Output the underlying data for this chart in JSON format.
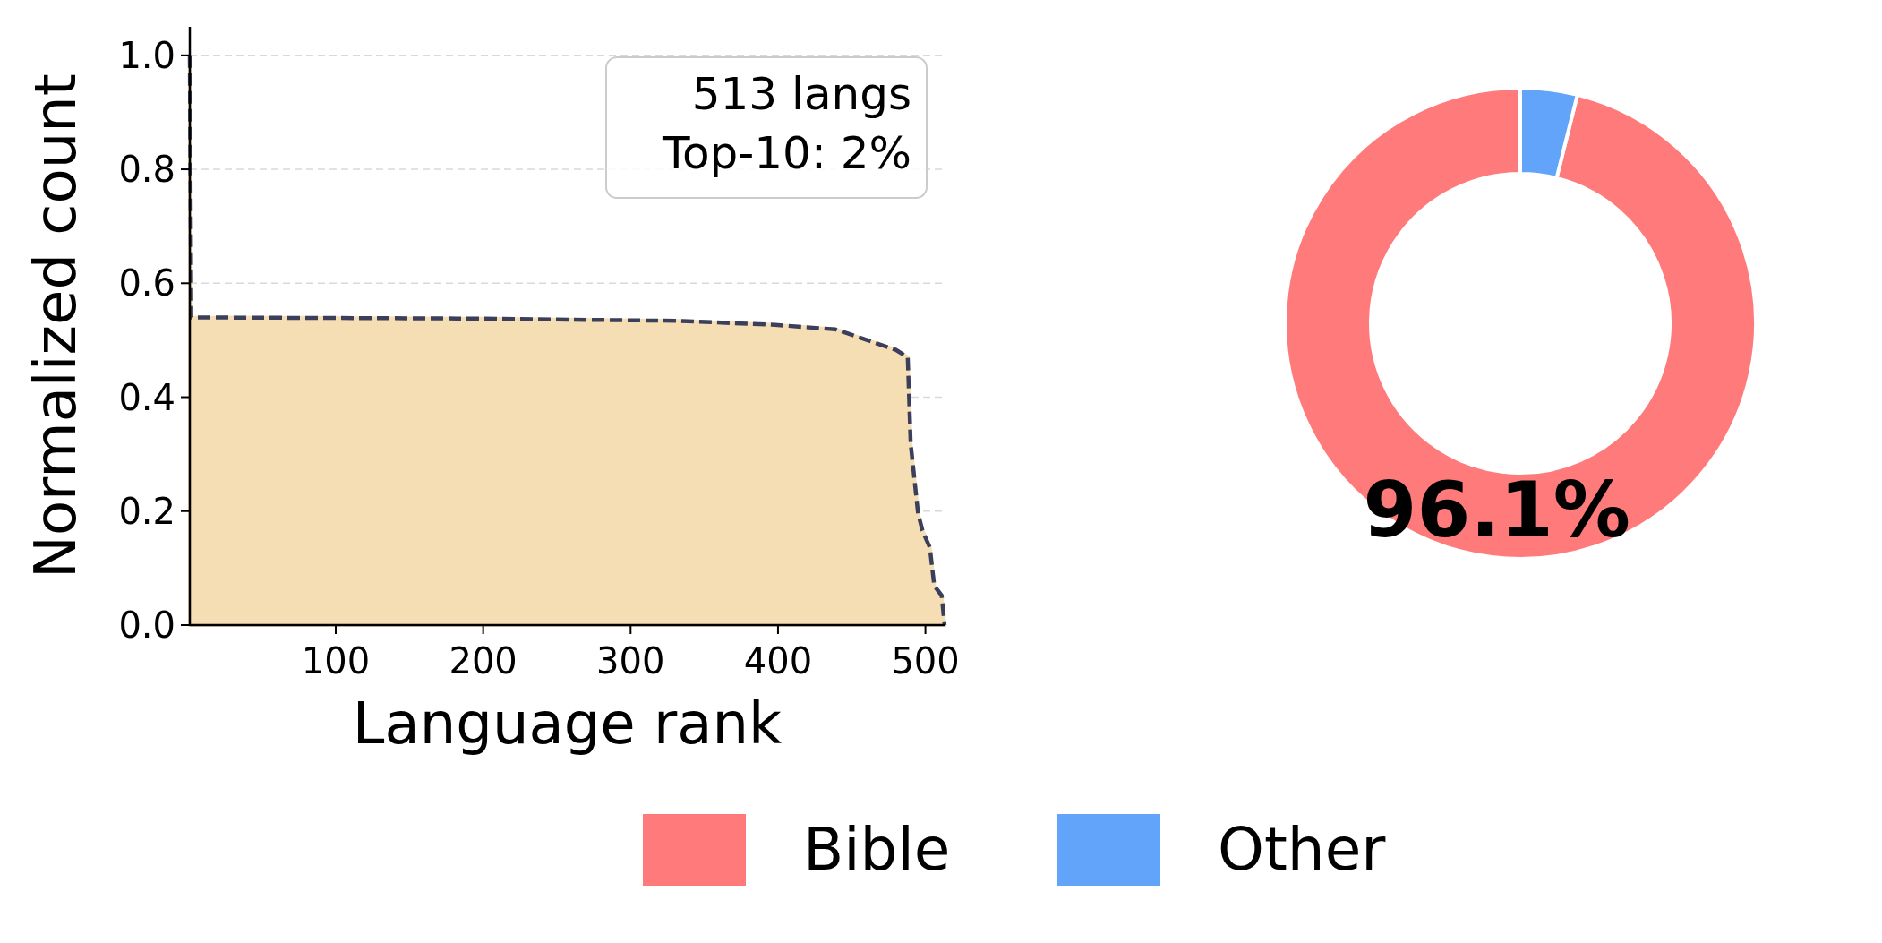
{
  "chart_data": [
    {
      "type": "area",
      "xlabel": "Language rank",
      "ylabel": "Normalized count",
      "xlim": [
        1,
        513
      ],
      "ylim": [
        0,
        1.05
      ],
      "xticks": [
        100,
        200,
        300,
        400,
        500
      ],
      "yticks": [
        {
          "value": 0,
          "label": "0.0"
        },
        {
          "value": 0.2,
          "label": "0.2"
        },
        {
          "value": 0.4,
          "label": "0.4"
        },
        {
          "value": 0.6,
          "label": "0.6"
        },
        {
          "value": 0.8,
          "label": "0.8"
        },
        {
          "value": 1,
          "label": "1.0"
        }
      ],
      "grid": "y",
      "line_style": "dashed",
      "color": "#f5deb3",
      "annotations": [
        "513 langs",
        "Top-10: 2%"
      ],
      "series": [
        {
          "color": "#3b3f5c",
          "x": [
            1,
            2,
            196,
            331,
            398,
            439,
            480,
            488,
            490,
            495,
            498,
            503,
            506,
            511,
            513
          ],
          "values": [
            1.0,
            0.54,
            0.538,
            0.534,
            0.527,
            0.519,
            0.483,
            0.47,
            0.318,
            0.196,
            0.166,
            0.136,
            0.069,
            0.052,
            0.0
          ]
        }
      ]
    },
    {
      "type": "donut",
      "categories": [
        "Bible",
        "Other"
      ],
      "values": [
        96.1,
        3.9
      ],
      "colors": [
        "#ff7b7b",
        "#62a4f9"
      ],
      "value_labels": [
        "96.1%",
        null
      ],
      "legend": "bottom"
    }
  ]
}
